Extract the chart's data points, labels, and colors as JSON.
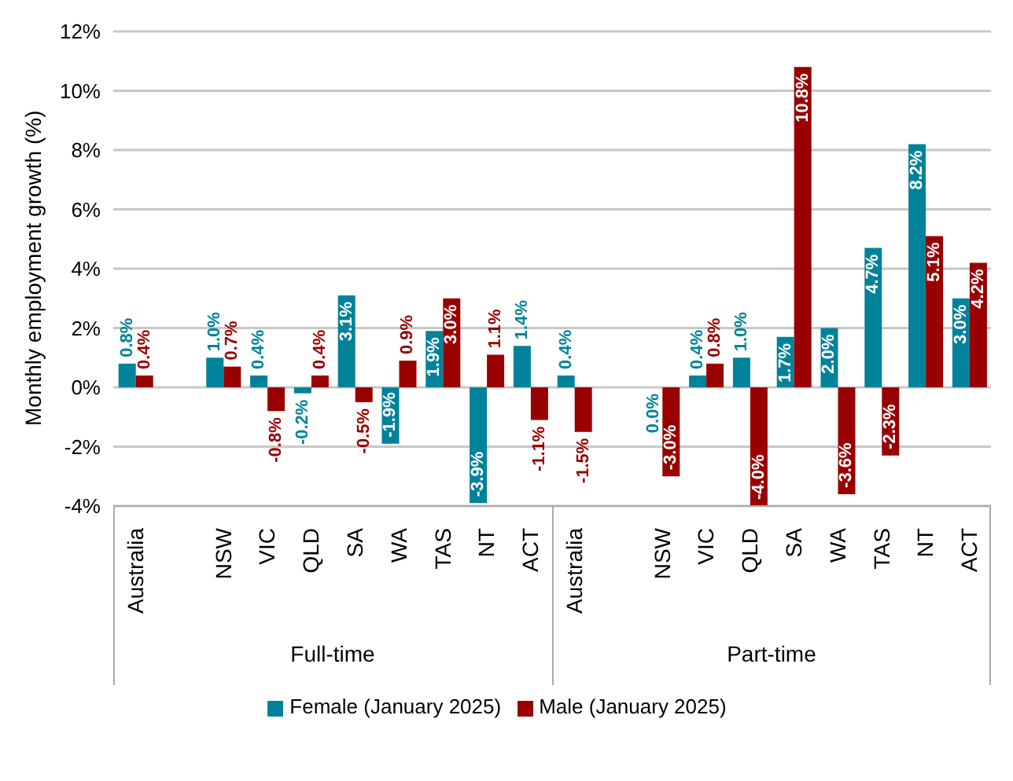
{
  "chart_data": {
    "type": "bar",
    "ylabel": "Monthly employment growth (%)",
    "categories": [
      "Australia",
      null,
      "NSW",
      "VIC",
      "QLD",
      "SA",
      "WA",
      "TAS",
      "NT",
      "ACT",
      "Australia",
      null,
      "NSW",
      "VIC",
      "QLD",
      "SA",
      "WA",
      "TAS",
      "NT",
      "ACT"
    ],
    "series": [
      {
        "name": "Female (January 2025)",
        "color": "#00829a",
        "values": [
          0.8,
          null,
          1.0,
          0.4,
          -0.2,
          3.1,
          -1.9,
          1.9,
          -3.9,
          1.4,
          0.4,
          null,
          0.0,
          0.4,
          1.0,
          1.7,
          2.0,
          4.7,
          8.2,
          3.0
        ],
        "value_labels": [
          "0.8%",
          null,
          "1.0%",
          "0.4%",
          "-0.2%",
          "3.1%",
          "-1.9%",
          "1.9%",
          "-3.9%",
          "1.4%",
          "0.4%",
          null,
          "0.0%",
          "0.4%",
          "1.0%",
          "1.7%",
          "2.0%",
          "4.7%",
          "8.2%",
          "3.0%"
        ]
      },
      {
        "name": "Male (January 2025)",
        "color": "#990000",
        "values": [
          0.4,
          null,
          0.7,
          -0.8,
          0.4,
          -0.5,
          0.9,
          3.0,
          1.1,
          -1.1,
          -1.5,
          null,
          -3.0,
          0.8,
          -4.0,
          10.8,
          -3.6,
          -2.3,
          5.1,
          4.2
        ],
        "value_labels": [
          "0.4%",
          null,
          "0.7%",
          "-0.8%",
          "0.4%",
          "-0.5%",
          "0.9%",
          "3.0%",
          "1.1%",
          "-1.1%",
          "-1.5%",
          null,
          "-3.0%",
          "0.8%",
          "-4.0%",
          "10.8%",
          "-3.6%",
          "-2.3%",
          "5.1%",
          "4.2%"
        ]
      }
    ],
    "ylim": [
      -4,
      12
    ],
    "yticks": [
      {
        "value": -4,
        "label": "-4%"
      },
      {
        "value": -2,
        "label": "-2%"
      },
      {
        "value": 0,
        "label": "0%"
      },
      {
        "value": 2,
        "label": "2%"
      },
      {
        "value": 4,
        "label": "4%"
      },
      {
        "value": 6,
        "label": "6%"
      },
      {
        "value": 8,
        "label": "8%"
      },
      {
        "value": 10,
        "label": "10%"
      },
      {
        "value": 12,
        "label": "12%"
      }
    ],
    "grid": "y",
    "legend": "bottom",
    "annotations": [
      "Full-time",
      "Part-time"
    ]
  }
}
